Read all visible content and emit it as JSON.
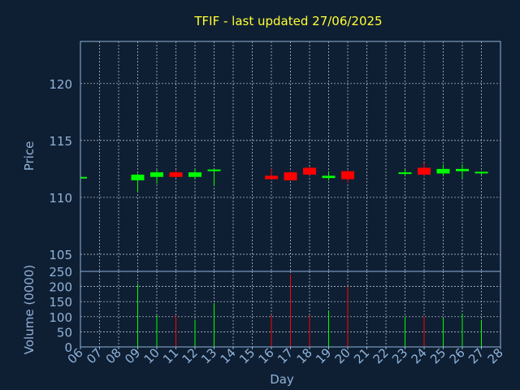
{
  "chart_data": {
    "type": "candlestick",
    "title": "TFIF - last updated 27/06/2025",
    "xlabel": "Day",
    "x_ticks": [
      "06",
      "07",
      "08",
      "09",
      "10",
      "11",
      "12",
      "13",
      "14",
      "15",
      "16",
      "17",
      "18",
      "19",
      "20",
      "21",
      "22",
      "23",
      "24",
      "25",
      "26",
      "27",
      "28"
    ],
    "price_panel": {
      "ylabel": "Price",
      "ylim": [
        103.5,
        123.7
      ],
      "y_ticks": [
        "105",
        "110",
        "115",
        "120"
      ],
      "y_tick_values": [
        105,
        110,
        115,
        120
      ]
    },
    "volume_panel": {
      "ylabel": "Volume (0000)",
      "ylim": [
        0,
        250
      ],
      "y_ticks": [
        "0",
        "50",
        "100",
        "150",
        "200",
        "250"
      ],
      "y_tick_values": [
        0,
        50,
        100,
        150,
        200,
        250
      ]
    },
    "colors": {
      "up": "#00ff00",
      "down": "#ff0000",
      "title": "#ffff33",
      "axis": "#8fb3d9",
      "background": "#0f1f33"
    },
    "candles": [
      {
        "day": 6,
        "open": 111.8,
        "high": 111.85,
        "low": 111.75,
        "close": 111.8,
        "volume": 0
      },
      {
        "day": 9,
        "open": 111.5,
        "high": 112.1,
        "low": 110.5,
        "close": 112.0,
        "volume": 210
      },
      {
        "day": 10,
        "open": 111.8,
        "high": 112.4,
        "low": 111.2,
        "close": 112.2,
        "volume": 105
      },
      {
        "day": 11,
        "open": 112.2,
        "high": 112.4,
        "low": 111.7,
        "close": 111.8,
        "volume": 105
      },
      {
        "day": 12,
        "open": 111.8,
        "high": 112.5,
        "low": 111.6,
        "close": 112.2,
        "volume": 90
      },
      {
        "day": 13,
        "open": 112.35,
        "high": 112.5,
        "low": 111.0,
        "close": 112.45,
        "volume": 145
      },
      {
        "day": 16,
        "open": 111.9,
        "high": 112.5,
        "low": 111.6,
        "close": 111.6,
        "volume": 105
      },
      {
        "day": 17,
        "open": 112.2,
        "high": 112.3,
        "low": 111.5,
        "close": 111.5,
        "volume": 240
      },
      {
        "day": 18,
        "open": 112.6,
        "high": 112.7,
        "low": 111.9,
        "close": 112.0,
        "volume": 105
      },
      {
        "day": 19,
        "open": 111.7,
        "high": 112.3,
        "low": 111.5,
        "close": 111.9,
        "volume": 120
      },
      {
        "day": 20,
        "open": 112.3,
        "high": 112.4,
        "low": 111.3,
        "close": 111.6,
        "volume": 200
      },
      {
        "day": 23,
        "open": 112.1,
        "high": 112.5,
        "low": 111.9,
        "close": 112.2,
        "volume": 100
      },
      {
        "day": 24,
        "open": 112.6,
        "high": 113.0,
        "low": 111.9,
        "close": 112.0,
        "volume": 100
      },
      {
        "day": 25,
        "open": 112.1,
        "high": 112.9,
        "low": 111.9,
        "close": 112.5,
        "volume": 95
      },
      {
        "day": 26,
        "open": 112.3,
        "high": 112.9,
        "low": 111.7,
        "close": 112.5,
        "volume": 110
      },
      {
        "day": 27,
        "open": 112.15,
        "high": 112.3,
        "low": 112.0,
        "close": 112.25,
        "volume": 90
      }
    ]
  }
}
